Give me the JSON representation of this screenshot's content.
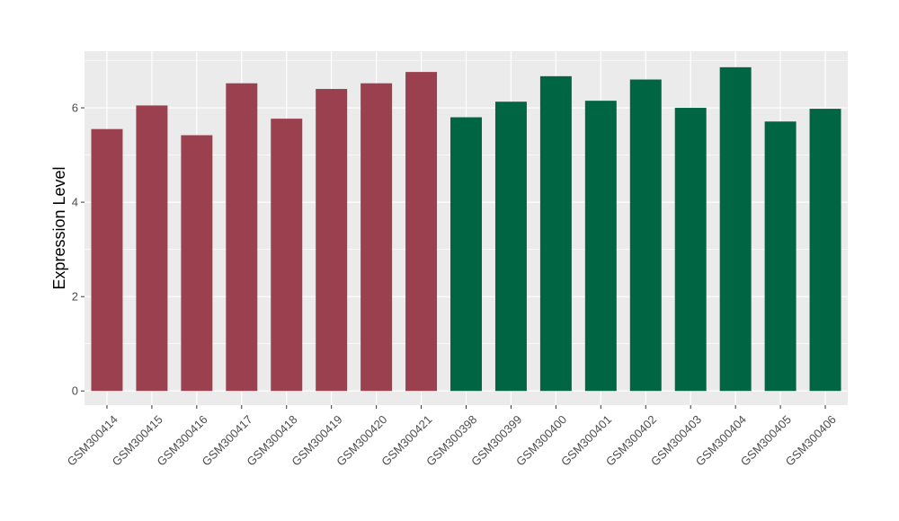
{
  "chart_data": {
    "type": "bar",
    "title": "",
    "xlabel": "",
    "ylabel": "Expression Level",
    "ylim": [
      -0.3,
      7.2
    ],
    "yticks": [
      0,
      2,
      4,
      6
    ],
    "grid": true,
    "legend": "none",
    "categories": [
      "GSM300414",
      "GSM300415",
      "GSM300416",
      "GSM300417",
      "GSM300418",
      "GSM300419",
      "GSM300420",
      "GSM300421",
      "GSM300398",
      "GSM300399",
      "GSM300400",
      "GSM300401",
      "GSM300402",
      "GSM300403",
      "GSM300404",
      "GSM300405",
      "GSM300406"
    ],
    "values": [
      5.55,
      6.05,
      5.42,
      6.52,
      5.77,
      6.4,
      6.52,
      6.76,
      5.8,
      6.13,
      6.67,
      6.15,
      6.6,
      6.0,
      6.86,
      5.71,
      5.98
    ],
    "groups": [
      0,
      0,
      0,
      0,
      0,
      0,
      0,
      0,
      1,
      1,
      1,
      1,
      1,
      1,
      1,
      1,
      1
    ],
    "colors": {
      "group_a": "#9b404f",
      "group_b": "#006543",
      "panel": "#ebebeb",
      "grid": "#ffffff"
    }
  }
}
